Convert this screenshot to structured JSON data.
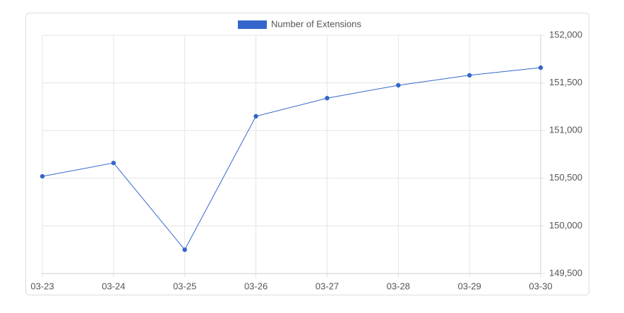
{
  "chart_data": {
    "type": "line",
    "categories": [
      "03-23",
      "03-24",
      "03-25",
      "03-26",
      "03-27",
      "03-28",
      "03-29",
      "03-30"
    ],
    "series": [
      {
        "name": "Number of Extensions",
        "color": "#3366cc",
        "values": [
          150520,
          150660,
          149750,
          151150,
          151340,
          151475,
          151580,
          151660
        ]
      }
    ],
    "ylim": [
      149500,
      152000
    ],
    "yticks": [
      {
        "value": 149500,
        "label": "149,500"
      },
      {
        "value": 150000,
        "label": "150,000"
      },
      {
        "value": 150500,
        "label": "150,500"
      },
      {
        "value": 151000,
        "label": "151,000"
      },
      {
        "value": 151500,
        "label": "151,500"
      },
      {
        "value": 152000,
        "label": "152,000"
      }
    ],
    "grid": true,
    "legend": "top"
  }
}
